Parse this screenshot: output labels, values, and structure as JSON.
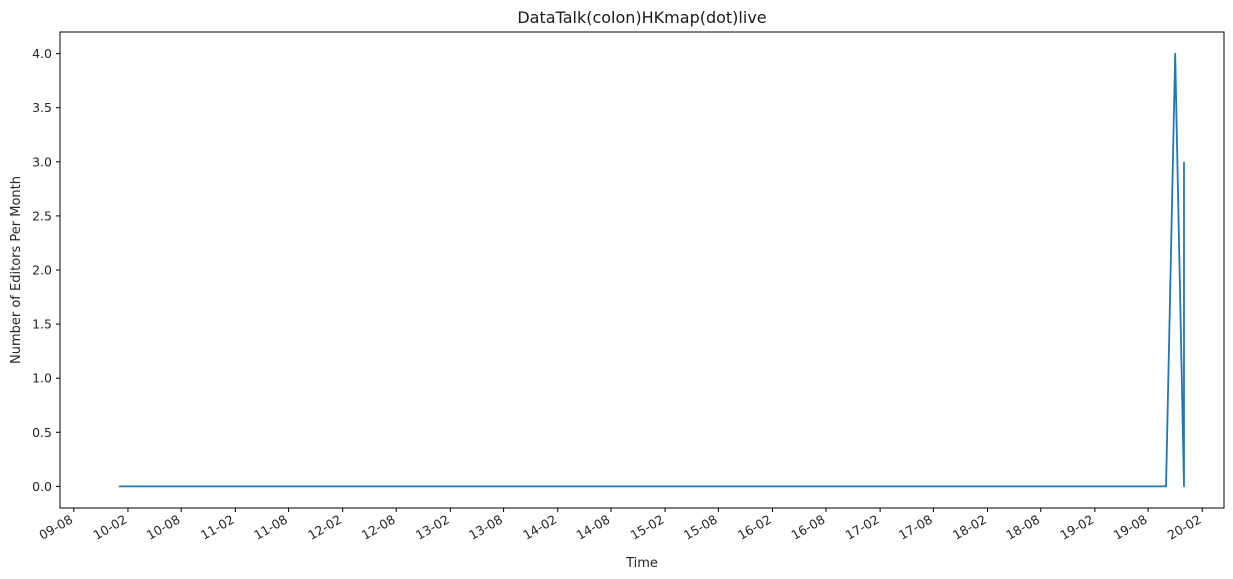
{
  "chart_data": {
    "type": "line",
    "title": "DataTalk(colon)HKmap(dot)live",
    "xlabel": "Time",
    "ylabel": "Number of Editors Per Month",
    "xlim": [
      "2009-06-15",
      "2020-04-15"
    ],
    "ylim": [
      -0.2,
      4.2
    ],
    "x_ticks": [
      "2009-08-01",
      "2010-02-01",
      "2010-08-01",
      "2011-02-01",
      "2011-08-01",
      "2012-02-01",
      "2012-08-01",
      "2013-02-01",
      "2013-08-01",
      "2014-02-01",
      "2014-08-01",
      "2015-02-01",
      "2015-08-01",
      "2016-02-01",
      "2016-08-01",
      "2017-02-01",
      "2017-08-01",
      "2018-02-01",
      "2018-08-01",
      "2019-02-01",
      "2019-08-01",
      "2020-02-01"
    ],
    "x_tick_labels": [
      "09-08",
      "10-02",
      "10-08",
      "11-02",
      "11-08",
      "12-02",
      "12-08",
      "13-02",
      "13-08",
      "14-02",
      "14-08",
      "15-02",
      "15-08",
      "16-02",
      "16-08",
      "17-02",
      "17-08",
      "18-02",
      "18-08",
      "19-02",
      "19-08",
      "20-02"
    ],
    "y_ticks": [
      0.0,
      0.5,
      1.0,
      1.5,
      2.0,
      2.5,
      3.0,
      3.5,
      4.0
    ],
    "y_tick_labels": [
      "0.0",
      "0.5",
      "1.0",
      "1.5",
      "2.0",
      "2.5",
      "3.0",
      "3.5",
      "4.0"
    ],
    "grid": false,
    "series": [
      {
        "color": "#1f77b4",
        "x": [
          "2010-01-01",
          "2019-10-01",
          "2019-11-01",
          "2019-12-01",
          "2019-12-01"
        ],
        "y": [
          0,
          0,
          4,
          0,
          3
        ]
      }
    ]
  }
}
